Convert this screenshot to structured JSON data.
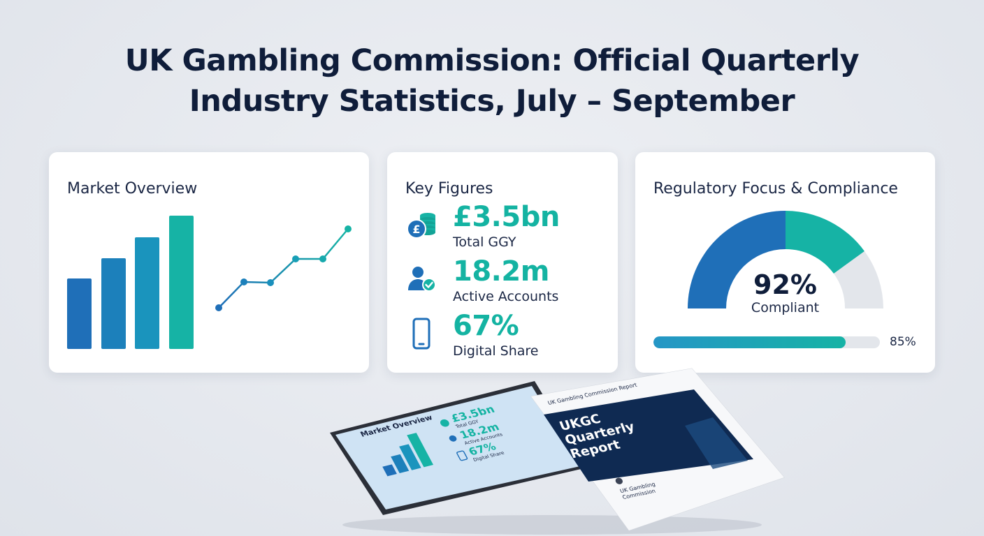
{
  "title": {
    "line1": "UK Gambling Commission: Official Quarterly",
    "line2": "Industry Statistics, July – September"
  },
  "market_overview": {
    "title": "Market Overview",
    "bar_color_start": "#1f6fb8",
    "bar_color_end": "#16b3a5"
  },
  "key_figures": {
    "title": "Key Figures",
    "items": [
      {
        "icon": "coin-stack-icon",
        "value": "£3.5bn",
        "label": "Total GGY"
      },
      {
        "icon": "user-check-icon",
        "value": "18.2m",
        "label": "Active Accounts"
      },
      {
        "icon": "smartphone-icon",
        "value": "67%",
        "label": "Digital Share"
      }
    ],
    "value_color": "#14b3a2"
  },
  "regulatory": {
    "title": "Regulatory Focus & Compliance",
    "gauge_value": "92%",
    "gauge_label": "Compliant",
    "progress_value": 85,
    "progress_text": "85%",
    "colors": {
      "blue": "#1f6fb8",
      "teal": "#16b3a5",
      "grey": "#e3e6eb"
    }
  },
  "tablet": {
    "title": "Market Overview",
    "figures": [
      {
        "value": "£3.5bn",
        "label": "Total GGY"
      },
      {
        "value": "18.2m",
        "label": "Active Accounts"
      },
      {
        "value": "67%",
        "label": "Digital Share"
      }
    ]
  },
  "report": {
    "header": "UK Gambling Commission Report",
    "title_line1": "UKGC",
    "title_line2": "Quarterly",
    "title_line3": "Report",
    "footer_line1": "UK Gambling",
    "footer_line2": "Commission"
  }
}
